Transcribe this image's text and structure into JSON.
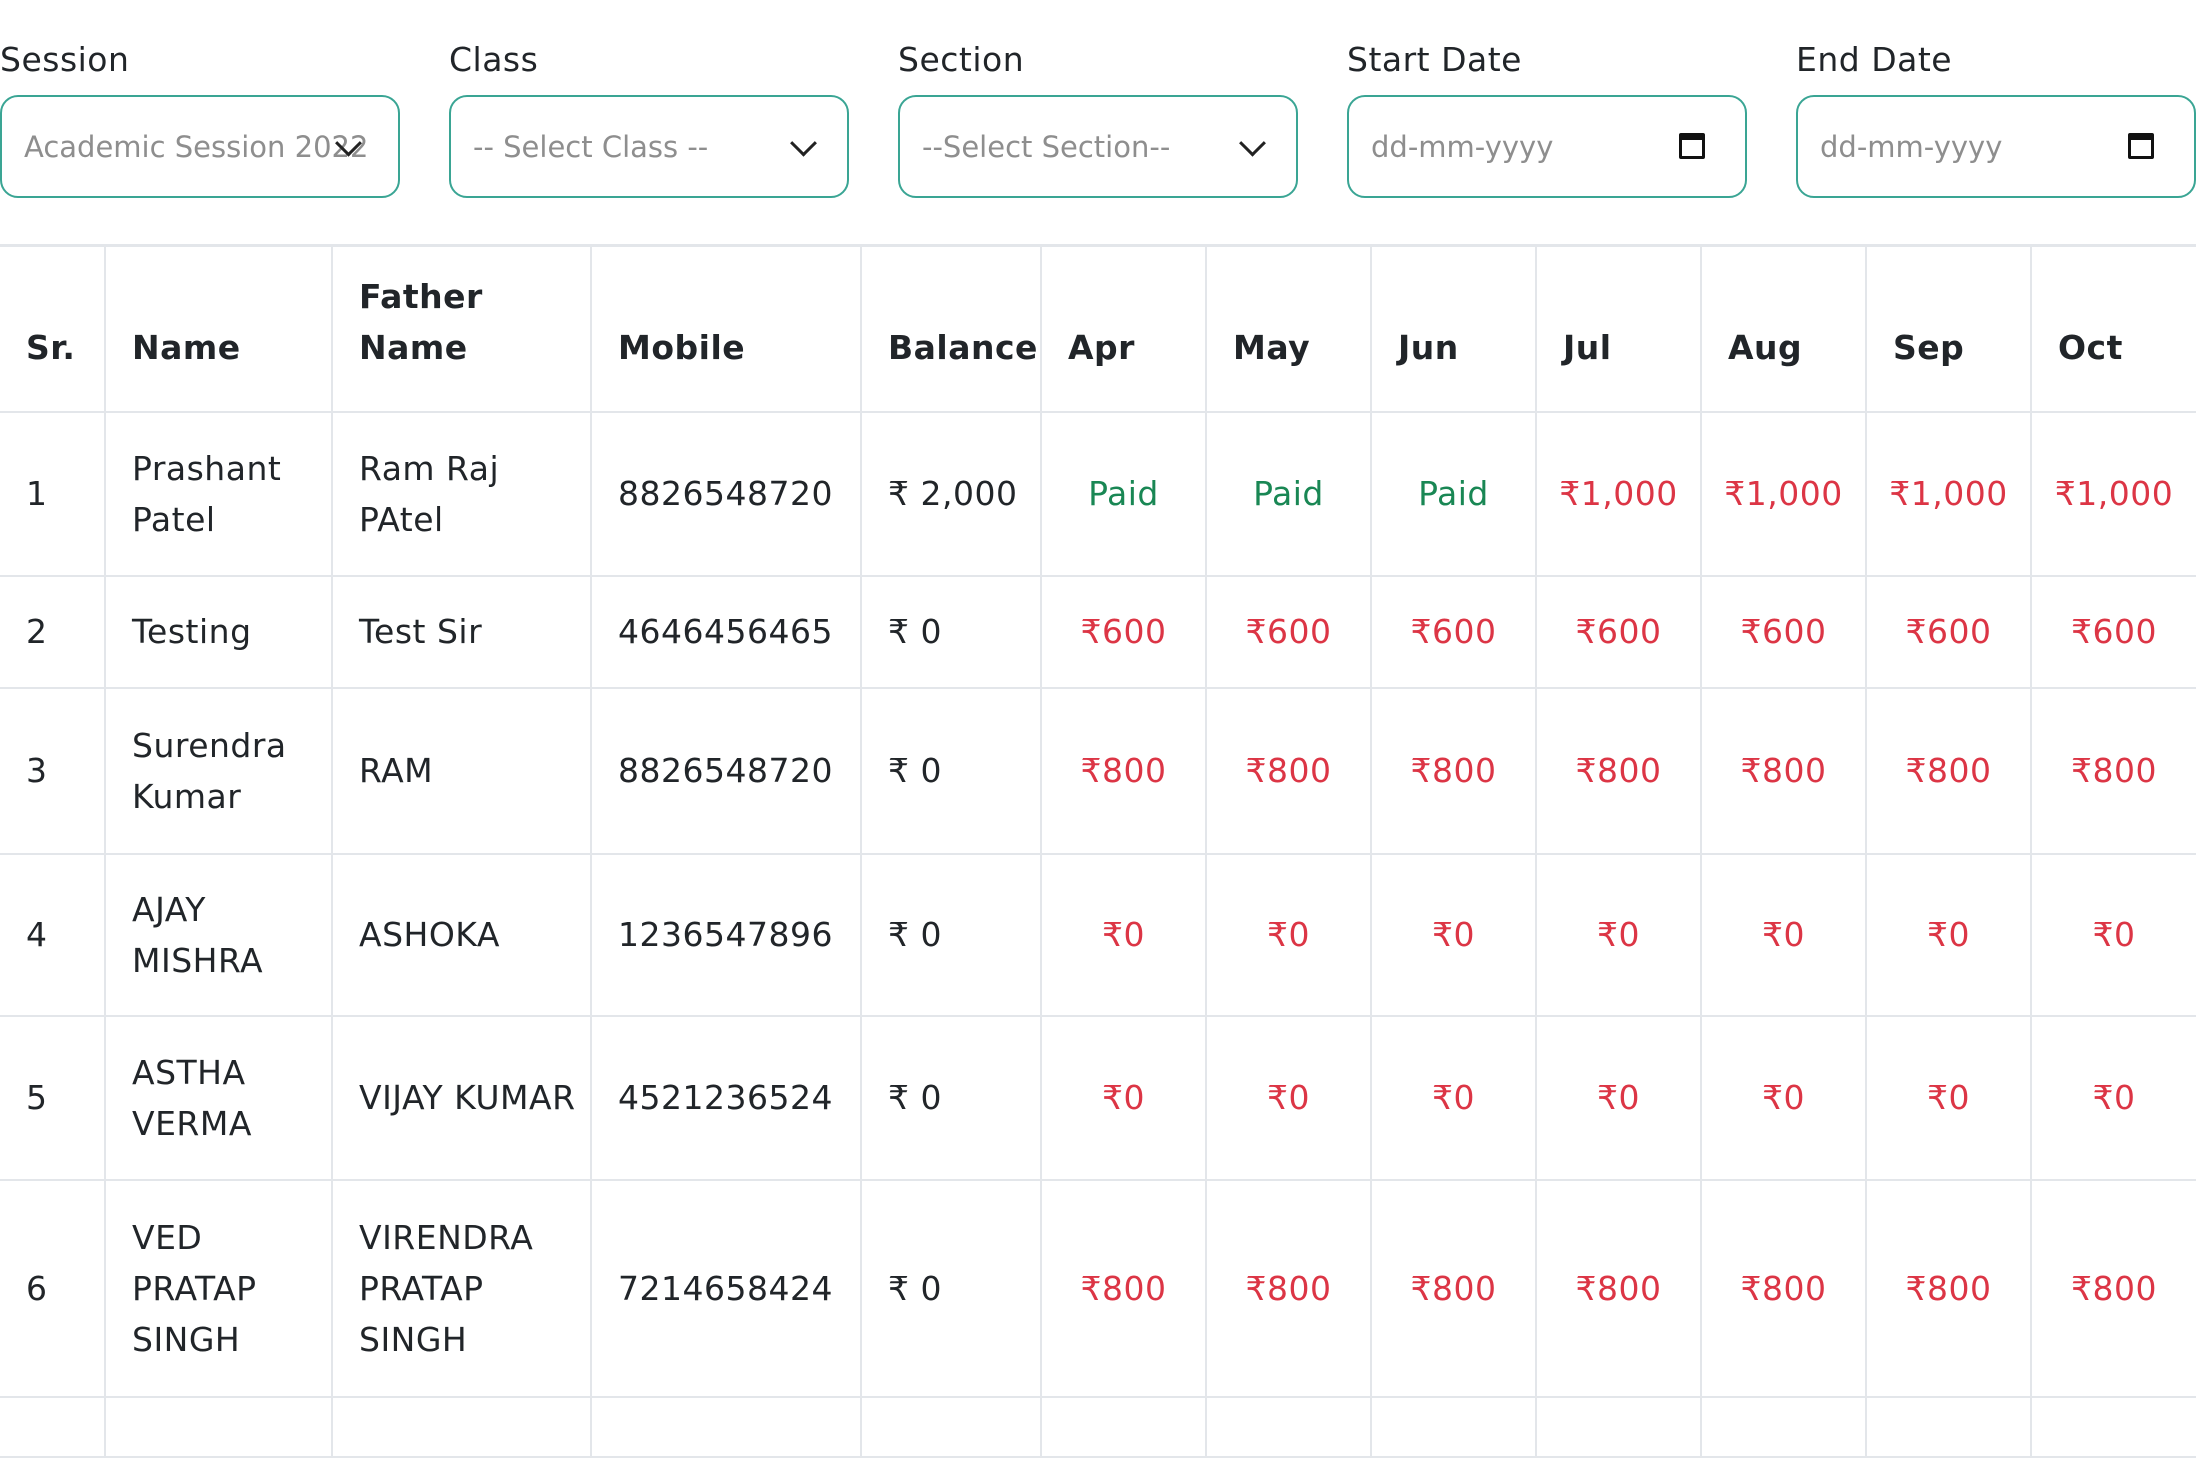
{
  "filters": {
    "session": {
      "label": "Session",
      "value": "Academic Session 2022"
    },
    "class": {
      "label": "Class",
      "value": "-- Select Class --"
    },
    "section": {
      "label": "Section",
      "value": "--Select Section--"
    },
    "start_date": {
      "label": "Start Date",
      "placeholder": "dd-mm-yyyy"
    },
    "end_date": {
      "label": "End Date",
      "placeholder": "dd-mm-yyyy"
    }
  },
  "colors": {
    "accent_border": "#3aa594",
    "paid": "#198754",
    "due": "#dc3545"
  },
  "table": {
    "headers": [
      "Sr.",
      "Name",
      "Father Name",
      "Mobile",
      "Balance",
      "Apr",
      "May",
      "Jun",
      "Jul",
      "Aug",
      "Sep",
      "Oct"
    ],
    "rows": [
      {
        "sr": "1",
        "name": "Prashant Patel",
        "father": "Ram Raj PAtel",
        "mobile": "8826548720",
        "balance": "₹ 2,000",
        "months": [
          "Paid",
          "Paid",
          "Paid",
          "₹1,000",
          "₹1,000",
          "₹1,000",
          "₹1,000"
        ]
      },
      {
        "sr": "2",
        "name": "Testing",
        "father": "Test Sir",
        "mobile": "4646456465",
        "balance": "₹ 0",
        "months": [
          "₹600",
          "₹600",
          "₹600",
          "₹600",
          "₹600",
          "₹600",
          "₹600"
        ]
      },
      {
        "sr": "3",
        "name": "Surendra Kumar",
        "father": "RAM",
        "mobile": "8826548720",
        "balance": "₹ 0",
        "months": [
          "₹800",
          "₹800",
          "₹800",
          "₹800",
          "₹800",
          "₹800",
          "₹800"
        ]
      },
      {
        "sr": "4",
        "name": "AJAY MISHRA",
        "father": "ASHOKA",
        "mobile": "1236547896",
        "balance": "₹ 0",
        "months": [
          "₹0",
          "₹0",
          "₹0",
          "₹0",
          "₹0",
          "₹0",
          "₹0"
        ]
      },
      {
        "sr": "5",
        "name": "ASTHA VERMA",
        "father": "VIJAY KUMAR",
        "mobile": "4521236524",
        "balance": "₹ 0",
        "months": [
          "₹0",
          "₹0",
          "₹0",
          "₹0",
          "₹0",
          "₹0",
          "₹0"
        ]
      },
      {
        "sr": "6",
        "name": "VED PRATAP SINGH",
        "father": "VIRENDRA PRATAP SINGH",
        "mobile": "7214658424",
        "balance": "₹ 0",
        "months": [
          "₹800",
          "₹800",
          "₹800",
          "₹800",
          "₹800",
          "₹800",
          "₹800"
        ]
      }
    ]
  }
}
